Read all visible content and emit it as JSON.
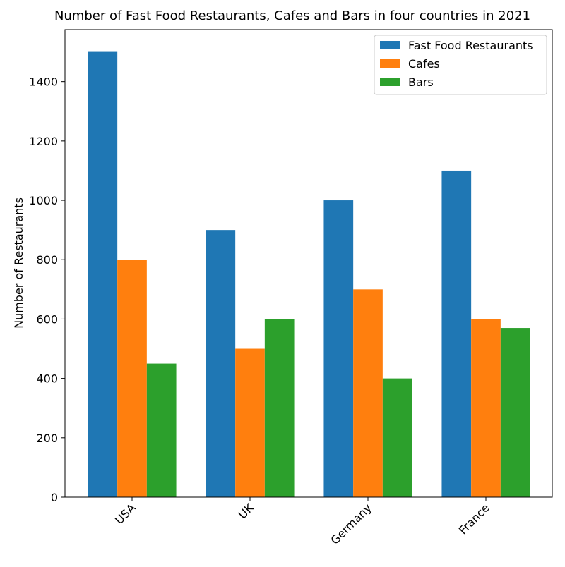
{
  "chart_data": {
    "type": "bar",
    "title": "Number of Fast Food Restaurants, Cafes and Bars in four countries in 2021",
    "xlabel": "",
    "ylabel": "Number of Restaurants",
    "categories": [
      "USA",
      "UK",
      "Germany",
      "France"
    ],
    "series": [
      {
        "name": "Fast Food Restaurants",
        "color": "#1f77b4",
        "values": [
          1500,
          900,
          1000,
          1100
        ]
      },
      {
        "name": "Cafes",
        "color": "#ff7f0e",
        "values": [
          800,
          500,
          700,
          600
        ]
      },
      {
        "name": "Bars",
        "color": "#2ca02c",
        "values": [
          450,
          600,
          400,
          570
        ]
      }
    ],
    "ylim": [
      0,
      1575
    ],
    "yticks": [
      0,
      200,
      400,
      600,
      800,
      1000,
      1200,
      1400
    ],
    "xtick_rotation": 45,
    "grid": false,
    "legend_position": "top-right"
  }
}
